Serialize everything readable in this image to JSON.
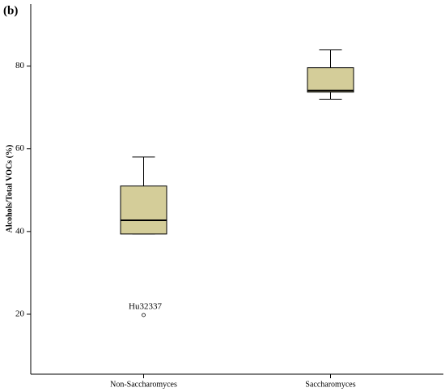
{
  "chart_data": {
    "type": "box",
    "panel_label": "(b)",
    "y_label": "Alcohols/Total VOCs (%)",
    "categories": [
      "Non-Saccharomyces",
      "Saccharomyces"
    ],
    "boxes": [
      {
        "whisker_low": 39.4,
        "q1": 39.4,
        "median": 42.7,
        "q3": 51.0,
        "whisker_high": 58.0,
        "outliers": [
          {
            "value": 19.8,
            "label": "Hu32337"
          }
        ]
      },
      {
        "whisker_low": 72.0,
        "q1": 73.7,
        "median": 74.1,
        "q3": 79.6,
        "whisker_high": 83.9,
        "outliers": []
      }
    ],
    "color": "#d4cd99",
    "ylim": [
      5.5,
      95
    ],
    "yticks": [
      20,
      40,
      60,
      80
    ]
  }
}
